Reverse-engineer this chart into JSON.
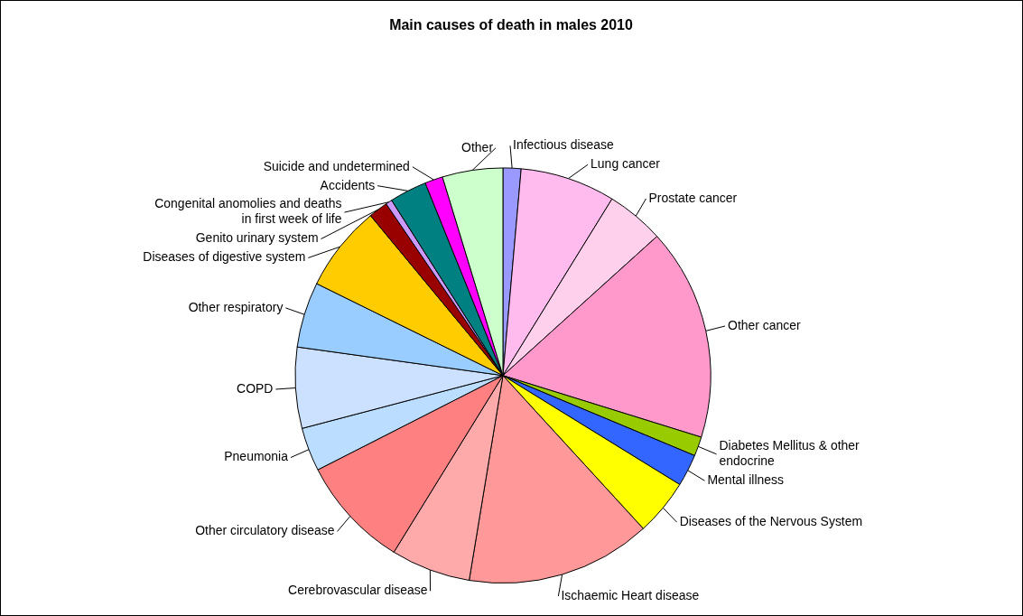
{
  "chart_data": {
    "type": "pie",
    "title": "Main causes of death in males 2010",
    "categories": [
      "Infectious disease",
      "Lung cancer",
      "Prostate cancer",
      "Other cancer",
      "Diabetes Mellitus & other endocrine",
      "Mental illness",
      "Diseases of the Nervous System",
      "Ischaemic Heart disease",
      "Cerebrovascular disease",
      "Other circulatory disease",
      "Pneumonia",
      "COPD",
      "Other respiratory",
      "Diseases of digestive system",
      "Genito urinary system",
      "Congenital anomolies and deaths in first week of life",
      "Accidents",
      "Suicide and undetermined",
      "Other"
    ],
    "values": [
      1.4,
      7.4,
      4.5,
      16.5,
      1.5,
      2.5,
      4.4,
      14.4,
      6.2,
      8.7,
      3.4,
      6.3,
      5.1,
      6.7,
      1.5,
      0.5,
      2.9,
      1.4,
      4.7
    ],
    "colors": [
      "#9999ff",
      "#ffbbee",
      "#ffd0ec",
      "#ff99cc",
      "#99cc00",
      "#3366ff",
      "#ffff00",
      "#ff9999",
      "#ffaaaa",
      "#ff8080",
      "#bbddff",
      "#cce0ff",
      "#99ccff",
      "#ffcc00",
      "#990000",
      "#cc99ff",
      "#008080",
      "#ff00ff",
      "#ccffcc"
    ],
    "legend": false
  }
}
